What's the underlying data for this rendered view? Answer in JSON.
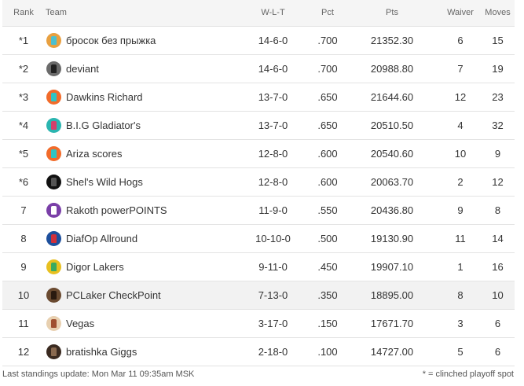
{
  "headers": {
    "rank": "Rank",
    "team": "Team",
    "wlt": "W-L-T",
    "pct": "Pct",
    "pts": "Pts",
    "waiver": "Waiver",
    "moves": "Moves"
  },
  "rows": [
    {
      "rank": "*1",
      "team": "бросок без прыжка",
      "wlt": "14-6-0",
      "pct": ".700",
      "pts": "21352.30",
      "waiver": "6",
      "moves": "15",
      "avatar_bg": "#e8a040",
      "avatar_fg": "#4cc0d0"
    },
    {
      "rank": "*2",
      "team": "deviant",
      "wlt": "14-6-0",
      "pct": ".700",
      "pts": "20988.80",
      "waiver": "7",
      "moves": "19",
      "avatar_bg": "#6b6b6b",
      "avatar_fg": "#222222"
    },
    {
      "rank": "*3",
      "team": "Dawkins Richard",
      "wlt": "13-7-0",
      "pct": ".650",
      "pts": "21644.60",
      "waiver": "12",
      "moves": "23",
      "avatar_bg": "#f26b2a",
      "avatar_fg": "#2ec4c4"
    },
    {
      "rank": "*4",
      "team": "B.I.G Gladiator's",
      "wlt": "13-7-0",
      "pct": ".650",
      "pts": "20510.50",
      "waiver": "4",
      "moves": "32",
      "avatar_bg": "#2bb5b0",
      "avatar_fg": "#d6406a"
    },
    {
      "rank": "*5",
      "team": "Ariza scores",
      "wlt": "12-8-0",
      "pct": ".600",
      "pts": "20540.60",
      "waiver": "10",
      "moves": "9",
      "avatar_bg": "#f26b2a",
      "avatar_fg": "#2ec4c4"
    },
    {
      "rank": "*6",
      "team": "Shel's Wild Hogs",
      "wlt": "12-8-0",
      "pct": ".600",
      "pts": "20063.70",
      "waiver": "2",
      "moves": "12",
      "avatar_bg": "#111111",
      "avatar_fg": "#555555"
    },
    {
      "rank": "7",
      "team": "Rakoth powerPOINTS",
      "wlt": "11-9-0",
      "pct": ".550",
      "pts": "20436.80",
      "waiver": "9",
      "moves": "8",
      "avatar_bg": "#7a3fa8",
      "avatar_fg": "#ffffff"
    },
    {
      "rank": "8",
      "team": "DiafOp Allround",
      "wlt": "10-10-0",
      "pct": ".500",
      "pts": "19130.90",
      "waiver": "11",
      "moves": "14",
      "avatar_bg": "#1d4f9c",
      "avatar_fg": "#d0303a"
    },
    {
      "rank": "9",
      "team": "Digor Lakers",
      "wlt": "9-11-0",
      "pct": ".450",
      "pts": "19907.10",
      "waiver": "1",
      "moves": "16",
      "avatar_bg": "#e8c020",
      "avatar_fg": "#3aaa60"
    },
    {
      "rank": "10",
      "team": "PCLaker CheckPoint",
      "wlt": "7-13-0",
      "pct": ".350",
      "pts": "18895.00",
      "waiver": "8",
      "moves": "10",
      "avatar_bg": "#6a4a30",
      "avatar_fg": "#2a1a10"
    },
    {
      "rank": "11",
      "team": "Vegas",
      "wlt": "3-17-0",
      "pct": ".150",
      "pts": "17671.70",
      "waiver": "3",
      "moves": "6",
      "avatar_bg": "#e8d0b0",
      "avatar_fg": "#a05030"
    },
    {
      "rank": "12",
      "team": "bratishka Giggs",
      "wlt": "2-18-0",
      "pct": ".100",
      "pts": "14727.00",
      "waiver": "5",
      "moves": "6",
      "avatar_bg": "#3a2a20",
      "avatar_fg": "#8a6a50"
    }
  ],
  "highlight_row": 9,
  "footer": {
    "last_update": "Last standings update: Mon Mar 11 09:35am MSK",
    "legend": "* = clinched playoff spot"
  }
}
